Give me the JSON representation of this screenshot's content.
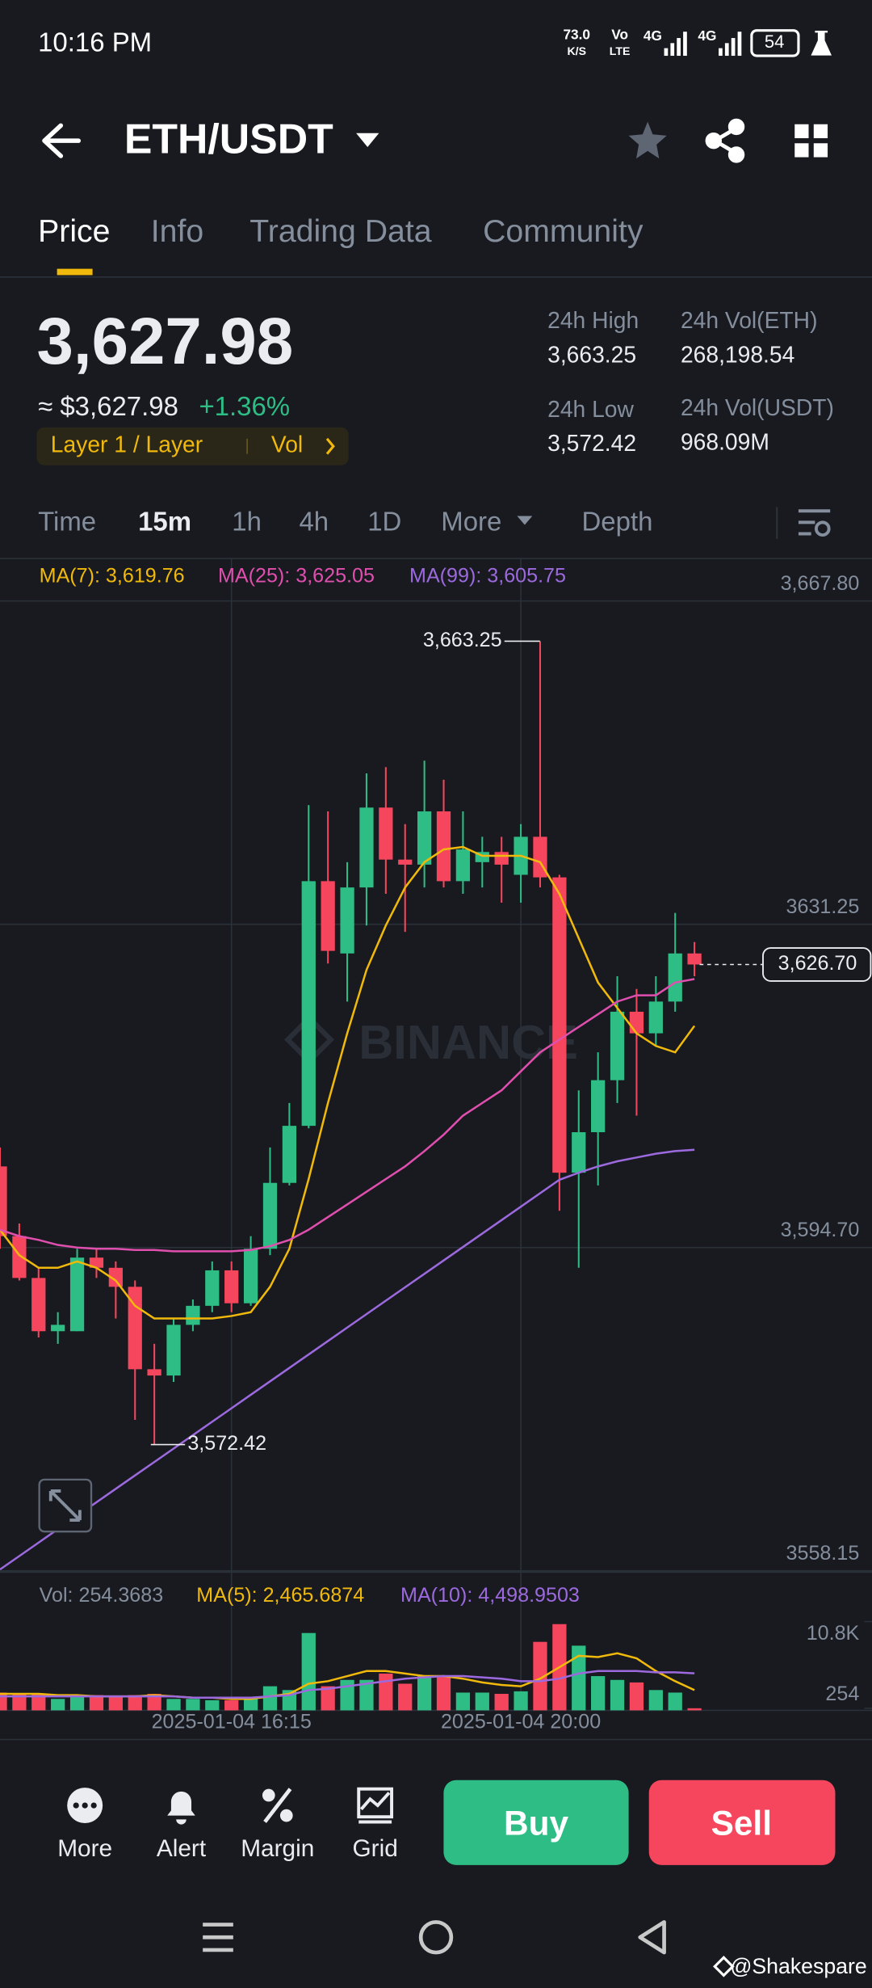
{
  "status_bar": {
    "time": "10:16 PM",
    "speed": "73.0",
    "speed_unit": "K/S",
    "volte_top": "Vo",
    "volte_bottom": "LTE",
    "net_1": "4G",
    "net_2": "4G",
    "battery": "54"
  },
  "header": {
    "title": "ETH/USDT"
  },
  "tabs": [
    "Price",
    "Info",
    "Trading Data",
    "Community"
  ],
  "ticker": {
    "price": "3,627.98",
    "fiat_price": "≈ $3,627.98",
    "change": "+1.36%",
    "tag": "Layer 1 / Layer",
    "tag_vol": "Vol",
    "stats": [
      {
        "label": "24h High",
        "value": "3,663.25"
      },
      {
        "label": "24h Vol(ETH)",
        "value": "268,198.54"
      },
      {
        "label": "24h Low",
        "value": "3,572.42"
      },
      {
        "label": "24h Vol(USDT)",
        "value": "968.09M"
      }
    ]
  },
  "intervals": [
    "Time",
    "15m",
    "1h",
    "4h",
    "1D",
    "More",
    "Depth"
  ],
  "chart_watermark": "BINANCE",
  "chart_data": [
    {
      "type": "candlestick",
      "up_color": "#2ebd85",
      "down_color": "#f6465d",
      "open": [
        3603.87,
        3595.99,
        3591.26,
        3585.24,
        3585.24,
        3593.56,
        3592.41,
        3590.26,
        3580.94,
        3580.23,
        3585.96,
        3588.11,
        3592.12,
        3588.4,
        3594.56,
        3602.01,
        3608.46,
        3636.12,
        3627.95,
        3635.41,
        3644.44,
        3638.56,
        3637.99,
        3644.01,
        3636.12,
        3638.27,
        3639.42,
        3636.84,
        3641.14,
        3636.55,
        3603.16,
        3607.74,
        3613.62,
        3621.36,
        3618.92,
        3622.51,
        3627.95
      ],
      "high": [
        3606.02,
        3597.42,
        3592.41,
        3587.39,
        3594.56,
        3594.56,
        3593.13,
        3590.97,
        3583.81,
        3586.68,
        3588.83,
        3593.13,
        3593.13,
        3595.99,
        3606.02,
        3611.04,
        3644.72,
        3644.01,
        3638.27,
        3648.31,
        3649.02,
        3642.57,
        3649.74,
        3647.59,
        3644.01,
        3641.14,
        3641.14,
        3642.57,
        3663.25,
        3636.84,
        3612.47,
        3616.77,
        3625.37,
        3623.94,
        3625.37,
        3632.54,
        3629.24
      ],
      "low": [
        3594.56,
        3590.97,
        3584.53,
        3583.81,
        3585.24,
        3591.26,
        3586.68,
        3575.21,
        3572.42,
        3579.51,
        3585.24,
        3587.39,
        3587.39,
        3588.11,
        3593.84,
        3601.72,
        3608.17,
        3626.81,
        3622.51,
        3631.11,
        3634.69,
        3630.39,
        3635.41,
        3635.41,
        3634.69,
        3635.41,
        3633.69,
        3633.69,
        3635.41,
        3598.86,
        3592.41,
        3601.72,
        3611.04,
        3609.61,
        3617.49,
        3621.36,
        3625.37
      ],
      "close": [
        3595.99,
        3591.26,
        3585.24,
        3585.96,
        3593.56,
        3592.41,
        3590.26,
        3580.94,
        3580.23,
        3585.96,
        3588.11,
        3592.12,
        3588.4,
        3594.56,
        3602.01,
        3608.46,
        3636.12,
        3628.24,
        3635.41,
        3644.44,
        3638.56,
        3637.99,
        3644.01,
        3636.12,
        3639.71,
        3639.42,
        3637.99,
        3641.14,
        3636.55,
        3603.16,
        3607.74,
        3613.62,
        3621.36,
        3618.92,
        3622.51,
        3627.95,
        3626.7
      ],
      "series": [
        {
          "name": "MA(7): 3,619.76",
          "color": "#f0b90b",
          "values": [
            3596.71,
            3593.84,
            3592.41,
            3592.41,
            3593.13,
            3592.41,
            3590.97,
            3588.11,
            3586.68,
            3586.68,
            3586.68,
            3586.68,
            3586.96,
            3587.39,
            3590.26,
            3594.56,
            3602.44,
            3611.04,
            3618.92,
            3626.09,
            3631.11,
            3635.41,
            3638.27,
            3639.71,
            3639.99,
            3638.99,
            3638.99,
            3638.99,
            3638.27,
            3634.69,
            3629.67,
            3624.66,
            3621.79,
            3618.92,
            3617.49,
            3616.77,
            3619.76
          ]
        },
        {
          "name": "MA(25): 3,625.05",
          "color": "#e04fae",
          "values": [
            3596.71,
            3595.99,
            3595.56,
            3594.99,
            3594.7,
            3594.56,
            3594.56,
            3594.42,
            3594.42,
            3594.27,
            3594.27,
            3594.27,
            3594.27,
            3594.42,
            3594.85,
            3595.56,
            3596.71,
            3598.14,
            3599.57,
            3601.01,
            3602.44,
            3603.87,
            3605.6,
            3607.46,
            3609.61,
            3611.04,
            3612.47,
            3614.62,
            3616.77,
            3618.21,
            3619.64,
            3621.07,
            3622.51,
            3623.22,
            3623.22,
            3624.66,
            3625.05
          ]
        },
        {
          "name": "MA(99): 3,605.75",
          "color": "#9c6ade",
          "values": [
            3558.3,
            3559.82,
            3561.34,
            3562.86,
            3564.38,
            3565.9,
            3567.42,
            3568.94,
            3570.45,
            3571.97,
            3573.49,
            3575.01,
            3576.53,
            3578.05,
            3579.57,
            3581.09,
            3582.61,
            3584.13,
            3585.65,
            3587.17,
            3588.69,
            3590.21,
            3591.72,
            3593.24,
            3594.76,
            3596.28,
            3597.8,
            3599.32,
            3600.84,
            3602.36,
            3603.16,
            3603.87,
            3604.45,
            3604.88,
            3605.31,
            3605.6,
            3605.75
          ]
        }
      ],
      "ylim": [
        3558.0,
        3672.53
      ],
      "yticks": [
        {
          "value": 3667.8,
          "label": "3,667.80"
        },
        3631.25,
        {
          "value": 3594.7,
          "label": "3,594.70"
        },
        3558.15
      ],
      "annotations": [
        {
          "value": 3663.25,
          "label": "3,663.25"
        },
        {
          "value": 3572.42,
          "label": "3,572.42"
        }
      ],
      "last_price": {
        "value": 3626.7,
        "label": "3,626.70"
      }
    },
    {
      "type": "bar",
      "label": "Vol: 254.3683",
      "categories": [
        null,
        null,
        null,
        null,
        null,
        null,
        null,
        null,
        null,
        null,
        null,
        null,
        "2025-01-04 16:15",
        null,
        null,
        null,
        null,
        null,
        null,
        null,
        null,
        null,
        null,
        null,
        null,
        null,
        null,
        "2025-01-04 20:00",
        null,
        null,
        null,
        null,
        null,
        null,
        null,
        null,
        null
      ],
      "values": [
        2160,
        2006,
        2006,
        1389,
        1851,
        1851,
        1697,
        1851,
        2006,
        1389,
        1389,
        1234,
        1234,
        1389,
        2931,
        2469,
        9411,
        2931,
        3703,
        3703,
        4474,
        3240,
        4166,
        4166,
        2160,
        2160,
        2006,
        2314,
        8332,
        10491,
        7869,
        4166,
        3703,
        3394,
        2469,
        2160,
        254.3683
      ],
      "series": [
        {
          "name": "MA(5): 2,465.6874",
          "color": "#f0b90b",
          "values": [
            2006,
            2006,
            2006,
            1851,
            1851,
            1697,
            1697,
            1697,
            1851,
            1697,
            1543,
            1543,
            1389,
            1389,
            1697,
            2006,
            3240,
            3549,
            4166,
            4783,
            4783,
            4474,
            4166,
            4166,
            3857,
            3394,
            3086,
            2931,
            3857,
            5246,
            6634,
            6480,
            6943,
            6326,
            4783,
            3549,
            2465.6874
          ]
        },
        {
          "name": "MA(10): 4,498.9503",
          "color": "#9c6ade",
          "values": [
            1697,
            1697,
            1697,
            1697,
            1697,
            1697,
            1697,
            1697,
            1697,
            1697,
            1543,
            1543,
            1543,
            1543,
            1697,
            1851,
            2469,
            2623,
            2931,
            3240,
            3549,
            3857,
            4011,
            4166,
            4166,
            4011,
            3857,
            3549,
            3549,
            3857,
            4474,
            4783,
            4783,
            4783,
            4629,
            4629,
            4498.9503
          ]
        }
      ],
      "ylim": [
        0,
        11417
      ],
      "yticks": [
        {
          "value": 10800,
          "label": "10.8K"
        },
        {
          "value": 254.3683,
          "label": "254"
        }
      ]
    }
  ],
  "bottom_bar": {
    "actions": [
      "More",
      "Alert",
      "Margin",
      "Grid"
    ],
    "buy": "Buy",
    "sell": "Sell"
  },
  "watermark": "@Shakespare"
}
